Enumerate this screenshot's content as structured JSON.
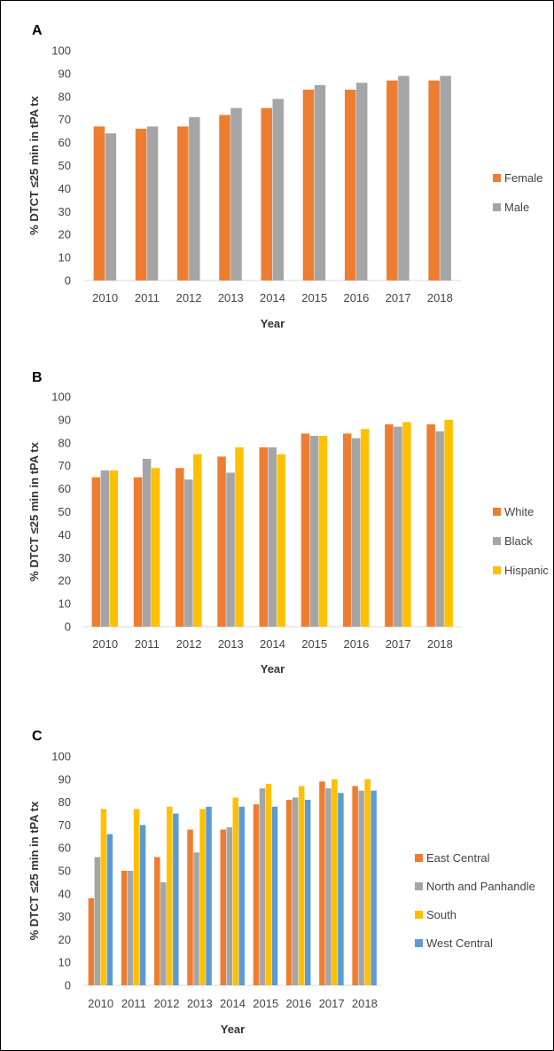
{
  "chart_data": [
    {
      "panel": "A",
      "type": "bar",
      "categories": [
        "2010",
        "2011",
        "2012",
        "2013",
        "2014",
        "2015",
        "2016",
        "2017",
        "2018"
      ],
      "series": [
        {
          "name": "Female",
          "color": "#ED7D31",
          "values": [
            67,
            66,
            67,
            72,
            75,
            83,
            83,
            87,
            87
          ]
        },
        {
          "name": "Male",
          "color": "#A5A5A5",
          "values": [
            64,
            67,
            71,
            75,
            79,
            85,
            86,
            89,
            89
          ]
        }
      ],
      "xlabel": "Year",
      "ylabel": "% DTCT ≤25 min in tPA tx",
      "ylim": [
        0,
        100
      ],
      "yticks": [
        0,
        10,
        20,
        30,
        40,
        50,
        60,
        70,
        80,
        90,
        100
      ],
      "grid": false,
      "legend": "right"
    },
    {
      "panel": "B",
      "type": "bar",
      "categories": [
        "2010",
        "2011",
        "2012",
        "2013",
        "2014",
        "2015",
        "2016",
        "2017",
        "2018"
      ],
      "series": [
        {
          "name": "White",
          "color": "#ED7D31",
          "values": [
            65,
            65,
            69,
            74,
            78,
            84,
            84,
            88,
            88
          ]
        },
        {
          "name": "Black",
          "color": "#A5A5A5",
          "values": [
            68,
            73,
            64,
            67,
            78,
            83,
            82,
            87,
            85
          ]
        },
        {
          "name": "Hispanic",
          "color": "#FFC000",
          "values": [
            68,
            69,
            75,
            78,
            75,
            83,
            86,
            89,
            90
          ]
        }
      ],
      "xlabel": "Year",
      "ylabel": "% DTCT ≤25 min in tPA tx",
      "ylim": [
        0,
        100
      ],
      "yticks": [
        0,
        10,
        20,
        30,
        40,
        50,
        60,
        70,
        80,
        90,
        100
      ],
      "grid": false,
      "legend": "right"
    },
    {
      "panel": "C",
      "type": "bar",
      "categories": [
        "2010",
        "2011",
        "2012",
        "2013",
        "2014",
        "2015",
        "2016",
        "2017",
        "2018"
      ],
      "series": [
        {
          "name": "East Central",
          "color": "#ED7D31",
          "values": [
            38,
            50,
            56,
            68,
            68,
            79,
            81,
            89,
            87
          ]
        },
        {
          "name": "North and Panhandle",
          "color": "#A5A5A5",
          "values": [
            56,
            50,
            45,
            58,
            69,
            86,
            82,
            86,
            85
          ]
        },
        {
          "name": "South",
          "color": "#FFC000",
          "values": [
            77,
            77,
            78,
            77,
            82,
            88,
            87,
            90,
            90
          ]
        },
        {
          "name": "West Central",
          "color": "#5B9BD5",
          "values": [
            66,
            70,
            75,
            78,
            78,
            78,
            81,
            84,
            85
          ]
        }
      ],
      "xlabel": "Year",
      "ylabel": "% DTCT ≤25 min in tPA tx",
      "ylim": [
        0,
        100
      ],
      "yticks": [
        0,
        10,
        20,
        30,
        40,
        50,
        60,
        70,
        80,
        90,
        100
      ],
      "grid": false,
      "legend": "right"
    }
  ]
}
